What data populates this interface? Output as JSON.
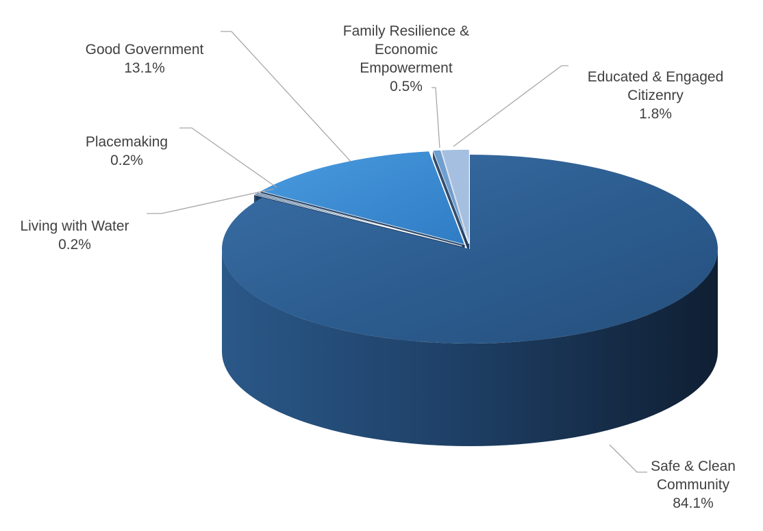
{
  "chart_data": {
    "type": "pie",
    "style": "3d-exploded",
    "title": "",
    "unit": "%",
    "slices": [
      {
        "label": "Safe & Clean Community",
        "value": 84.1,
        "color": "#2d5f93"
      },
      {
        "label": "Living with Water",
        "value": 0.2,
        "color": "#274f7c"
      },
      {
        "label": "Placemaking",
        "value": 0.2,
        "color": "#2a5b8c"
      },
      {
        "label": "Good Government",
        "value": 13.1,
        "color": "#3f8fd4"
      },
      {
        "label": "Family Resilience & Economic Empowerment",
        "value": 0.5,
        "color": "#6f9ed0"
      },
      {
        "label": "Educated & Engaged Citizenry",
        "value": 1.8,
        "color": "#a5bfe0"
      }
    ],
    "data_labels": {
      "Safe & Clean Community": {
        "text": "Safe & Clean\nCommunity",
        "pct": "84.1%"
      },
      "Living with Water": {
        "text": "Living with Water",
        "pct": "0.2%"
      },
      "Placemaking": {
        "text": "Placemaking",
        "pct": "0.2%"
      },
      "Good Government": {
        "text": "Good Government",
        "pct": "13.1%"
      },
      "Family Resilience & Economic Empowerment": {
        "text": "Family Resilience &\nEconomic\nEmpowerment",
        "pct": "0.5%"
      },
      "Educated & Engaged Citizenry": {
        "text": "Educated & Engaged\nCitizenry",
        "pct": "1.8%"
      }
    },
    "legend": "none"
  }
}
